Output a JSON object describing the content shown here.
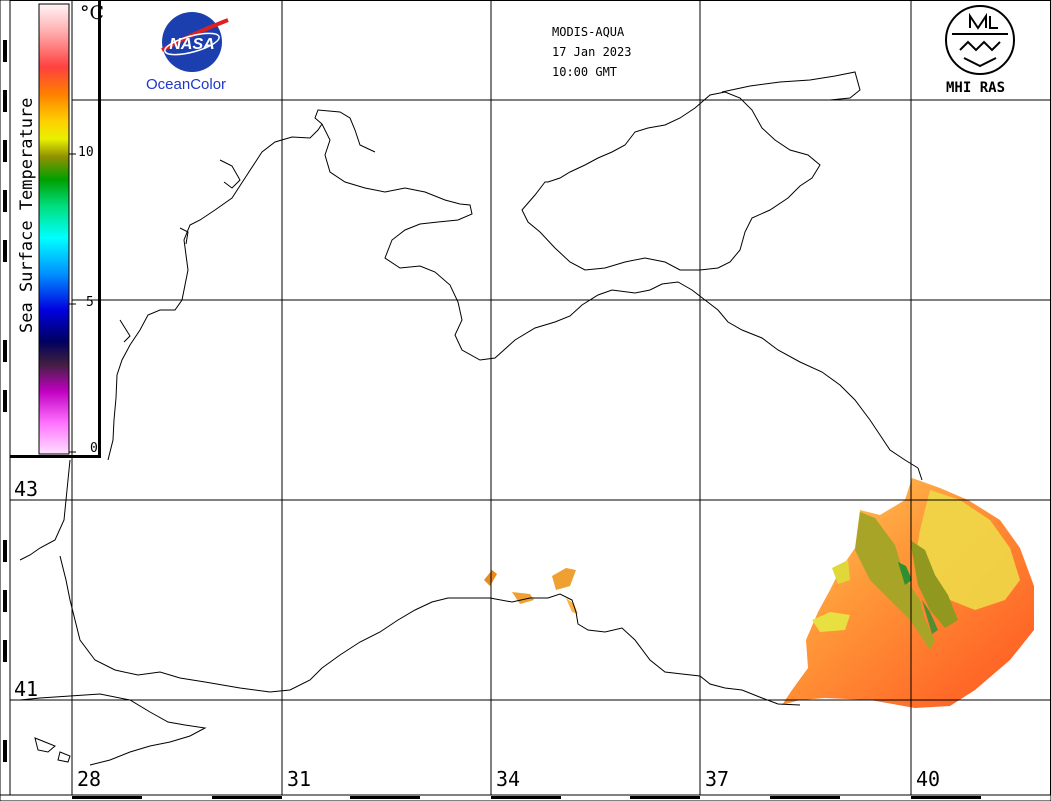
{
  "header": {
    "sensor": "MODIS-AQUA",
    "date": "17 Jan 2023",
    "time": "10:00 GMT"
  },
  "logos": {
    "nasa_wordmark": "NASA",
    "nasa_caption": "OceanColor",
    "mhi_caption": "MHI RAS"
  },
  "colorbar": {
    "title": "Sea Surface Temperature",
    "unit": "°C",
    "ticks": [
      "10",
      "5",
      "0"
    ],
    "range": [
      0,
      15
    ],
    "colors_top_to_bottom": [
      "#fff0f5",
      "#ff5050",
      "#ff8000",
      "#ffd000",
      "#ffff40",
      "#808000",
      "#00a000",
      "#00ffa0",
      "#00ffff",
      "#00a0ff",
      "#0000ff",
      "#000080",
      "#400040",
      "#c000c0",
      "#ff80ff",
      "#ffd8ff"
    ]
  },
  "map": {
    "longitude_labels": [
      "28",
      "31",
      "34",
      "37",
      "40"
    ],
    "latitude_labels": [
      "43",
      "41"
    ],
    "sst_patch_colors": [
      "#ff6a28",
      "#ff8a2a",
      "#ffb040",
      "#f0e040",
      "#a0a020",
      "#2f8f2f"
    ]
  }
}
